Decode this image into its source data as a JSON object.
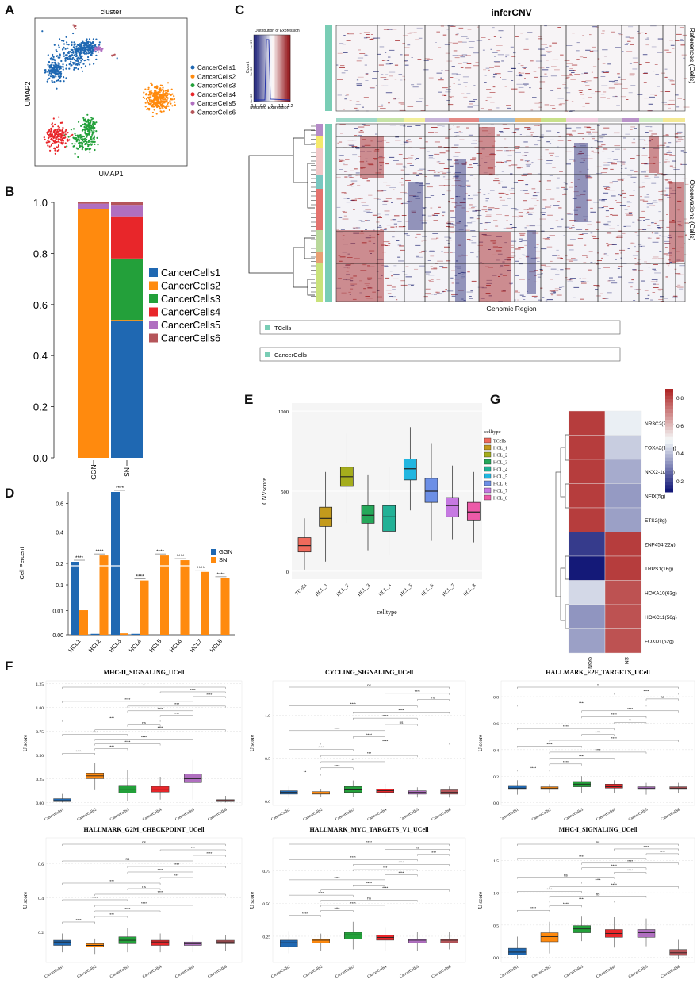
{
  "panel_labels": {
    "A": "A",
    "B": "B",
    "C": "C",
    "D": "D",
    "E": "E",
    "F": "F",
    "G": "G"
  },
  "colors": {
    "c1": "#1f68b2",
    "c2": "#ff8a0e",
    "c3": "#23a03a",
    "c4": "#e8262a",
    "c5": "#b06fc0",
    "c6": "#b5555a",
    "teal": "#79cdb5",
    "dark_red": "#9b0f12",
    "navy": "#1a1f6e"
  },
  "chart_data": [
    {
      "id": "A",
      "type": "scatter",
      "title": "cluster",
      "xlabel": "UMAP1",
      "ylabel": "UMAP2",
      "legend": [
        "CancerCells1",
        "CancerCells2",
        "CancerCells3",
        "CancerCells4",
        "CancerCells5",
        "CancerCells6"
      ]
    },
    {
      "id": "B",
      "type": "bar",
      "stacked": true,
      "categories": [
        "GGN",
        "SN"
      ],
      "yticks": [
        "0.0",
        "0.2",
        "0.4",
        "0.6",
        "0.8",
        "1.0"
      ],
      "ylim": [
        0,
        1
      ],
      "series": [
        {
          "name": "CancerCells1",
          "values": [
            0.0,
            0.535
          ]
        },
        {
          "name": "CancerCells2",
          "values": [
            0.975,
            0.005
          ]
        },
        {
          "name": "CancerCells3",
          "values": [
            0.0,
            0.24
          ]
        },
        {
          "name": "CancerCells4",
          "values": [
            0.0,
            0.165
          ]
        },
        {
          "name": "CancerCells5",
          "values": [
            0.02,
            0.045
          ]
        },
        {
          "name": "CancerCells6",
          "values": [
            0.005,
            0.01
          ]
        }
      ]
    },
    {
      "id": "C",
      "type": "heatmap",
      "title": "inferCNV",
      "key_title": "Distribution of Expression",
      "key_xlabel": "Modified Expression",
      "key_ylabel": "Count",
      "key_xticks": [
        "0.8",
        "0.9",
        "1",
        "1.1",
        "1.2"
      ],
      "key_yticks": [
        "0e+00",
        "5e+06",
        "1e+07"
      ],
      "ref_label": "References (Cells)",
      "obs_label": "Observations (Cells)",
      "xlabel": "Genomic Region",
      "legend": [
        "TCells",
        "CancerCells"
      ]
    },
    {
      "id": "D",
      "type": "bar",
      "ylabel": "Cell Percent",
      "categories": [
        "HCL1",
        "HCL2",
        "HCL3",
        "HCL4",
        "HCL5",
        "HCL6",
        "HCL7",
        "HCL8"
      ],
      "yticks": [
        "0.00",
        "0.01",
        "0.1",
        "0.2",
        "0.4",
        "0.6"
      ],
      "series": [
        {
          "name": "GGN",
          "values": [
            0.21,
            0.0004,
            0.7,
            0.0004,
            0,
            0,
            0,
            0
          ]
        },
        {
          "name": "SN",
          "values": [
            0.011,
            0.25,
            0.0006,
            0.12,
            0.25,
            0.22,
            0.16,
            0.13
          ]
        }
      ],
      "sig": [
        "****",
        "****",
        "****",
        "****",
        "****",
        "****",
        "****",
        "****"
      ]
    },
    {
      "id": "E",
      "type": "box",
      "xlabel": "celltype",
      "ylabel": "CNVscore",
      "ylim": [
        -50,
        1050
      ],
      "yticks": [
        0,
        500,
        1000
      ],
      "legend_title": "celltype",
      "categories": [
        "TCells",
        "HCL_1",
        "HCL_2",
        "HCL_3",
        "HCL_4",
        "HCL_5",
        "HCL_6",
        "HCL_7",
        "HCL_8"
      ],
      "series": [
        {
          "name": "TCells",
          "stats": [
            10,
            120,
            160,
            210,
            330
          ],
          "color": "#f06a5c"
        },
        {
          "name": "HCL_1",
          "stats": [
            60,
            280,
            330,
            400,
            620
          ],
          "color": "#c39a1c"
        },
        {
          "name": "HCL_2",
          "stats": [
            300,
            530,
            590,
            650,
            860
          ],
          "color": "#a5ad1c"
        },
        {
          "name": "HCL_3",
          "stats": [
            130,
            300,
            350,
            410,
            600
          ],
          "color": "#25a85a"
        },
        {
          "name": "HCL_4",
          "stats": [
            100,
            250,
            340,
            410,
            650
          ],
          "color": "#22b196"
        },
        {
          "name": "HCL_5",
          "stats": [
            380,
            570,
            640,
            700,
            900
          ],
          "color": "#22b6e0"
        },
        {
          "name": "HCL_6",
          "stats": [
            190,
            430,
            500,
            580,
            800
          ],
          "color": "#6c8fe6"
        },
        {
          "name": "HCL_7",
          "stats": [
            200,
            340,
            410,
            460,
            660
          ],
          "color": "#c679e2"
        },
        {
          "name": "HCL_8",
          "stats": [
            180,
            320,
            370,
            430,
            620
          ],
          "color": "#ec5aa8"
        }
      ]
    },
    {
      "id": "G",
      "type": "heatmap",
      "columns": [
        "GGN",
        "SN"
      ],
      "rows": [
        "NR3C2(29g)",
        "FOXA2(110g)",
        "NKX2-1(32g)",
        "NFIX(5g)",
        "ETS2(8g)",
        "ZNF454(22g)",
        "TRPS1(16g)",
        "HOXA10(63g)",
        "HOXC11(56g)",
        "FOXD1(52g)"
      ],
      "values": [
        [
          0.86,
          0.48
        ],
        [
          0.86,
          0.42
        ],
        [
          0.86,
          0.36
        ],
        [
          0.86,
          0.33
        ],
        [
          0.86,
          0.34
        ],
        [
          0.16,
          0.86
        ],
        [
          0.1,
          0.86
        ],
        [
          0.44,
          0.82
        ],
        [
          0.32,
          0.82
        ],
        [
          0.34,
          0.82
        ]
      ],
      "scale_ticks": [
        "0.8",
        "0.6",
        "0.4",
        "0.2"
      ]
    },
    {
      "id": "F",
      "type": "box",
      "ylabel": "U score",
      "categories": [
        "CancerCells1",
        "CancerCells2",
        "CancerCells3",
        "CancerCells4",
        "CancerCells5",
        "CancerCells6"
      ],
      "plots": [
        {
          "title": "MHC-II_SIGNALING_UCell",
          "yticks": [
            "0.00",
            "0.25",
            "0.50",
            "0.75",
            "1.00",
            "1.25"
          ],
          "ylim": [
            -0.03,
            1.28
          ],
          "boxes": [
            [
              0,
              0.01,
              0.02,
              0.04,
              0.09
            ],
            [
              0.13,
              0.25,
              0.28,
              0.31,
              0.42
            ],
            [
              0.02,
              0.1,
              0.14,
              0.18,
              0.34
            ],
            [
              0.03,
              0.11,
              0.14,
              0.17,
              0.27
            ],
            [
              0.03,
              0.21,
              0.25,
              0.3,
              0.45
            ],
            [
              0,
              0.01,
              0.02,
              0.03,
              0.07
            ]
          ],
          "sig": [
            "****",
            "****",
            "****",
            "****",
            "****",
            "****",
            "ns",
            "****",
            "****",
            "****",
            "****",
            "****",
            "****",
            "****",
            "*"
          ]
        },
        {
          "title": "CYCLING_SIGNALING_UCell",
          "yticks": [
            "0.0",
            "0.5",
            "1.0"
          ],
          "ylim": [
            -0.05,
            1.4
          ],
          "boxes": [
            [
              0.04,
              0.08,
              0.1,
              0.12,
              0.17
            ],
            [
              0.05,
              0.08,
              0.09,
              0.11,
              0.14
            ],
            [
              0.05,
              0.1,
              0.13,
              0.17,
              0.24
            ],
            [
              0.05,
              0.1,
              0.12,
              0.14,
              0.2
            ],
            [
              0.04,
              0.08,
              0.1,
              0.12,
              0.16
            ],
            [
              0.04,
              0.08,
              0.1,
              0.13,
              0.17
            ]
          ],
          "sig": [
            "**",
            "****",
            "**",
            "***",
            "****",
            "****",
            "****",
            "****",
            "ns",
            "****",
            "****",
            "****",
            "ns",
            "****",
            "ns"
          ]
        },
        {
          "title": "HALLMARK_E2F_TARGETS_UCell",
          "yticks": [
            "0.0",
            "0.2",
            "0.4",
            "0.6",
            "0.8"
          ],
          "ylim": [
            -0.02,
            0.92
          ],
          "boxes": [
            [
              0.06,
              0.1,
              0.11,
              0.13,
              0.17
            ],
            [
              0.07,
              0.1,
              0.11,
              0.12,
              0.14
            ],
            [
              0.07,
              0.12,
              0.14,
              0.16,
              0.2
            ],
            [
              0.07,
              0.11,
              0.12,
              0.14,
              0.17
            ],
            [
              0.06,
              0.1,
              0.11,
              0.12,
              0.15
            ],
            [
              0.07,
              0.1,
              0.11,
              0.12,
              0.15
            ]
          ],
          "sig": [
            "****",
            "****",
            "****",
            "****",
            "****",
            "****",
            "****",
            "****",
            "**",
            "****",
            "****",
            "****",
            "ns",
            "****",
            "*"
          ]
        },
        {
          "title": "HALLMARK_G2M_CHECKPOINT_UCell",
          "yticks": [
            "0.2",
            "0.4",
            "0.6"
          ],
          "ylim": [
            0.02,
            0.75
          ],
          "boxes": [
            [
              0.08,
              0.12,
              0.14,
              0.15,
              0.19
            ],
            [
              0.07,
              0.11,
              0.12,
              0.13,
              0.16
            ],
            [
              0.08,
              0.13,
              0.15,
              0.17,
              0.22
            ],
            [
              0.08,
              0.12,
              0.14,
              0.15,
              0.19
            ],
            [
              0.08,
              0.12,
              0.13,
              0.14,
              0.18
            ],
            [
              0.09,
              0.13,
              0.14,
              0.15,
              0.18
            ]
          ],
          "sig": [
            "****",
            "****",
            "****",
            "****",
            "****",
            "****",
            "ns",
            "****",
            "***",
            "****",
            "****",
            "ns",
            "****",
            "***",
            "ns"
          ]
        },
        {
          "title": "HALLMARK_MYC_TARGETS_V1_UCell",
          "yticks": [
            "0.25",
            "0.50",
            "0.75"
          ],
          "ylim": [
            0.05,
            1.0
          ],
          "boxes": [
            [
              0.12,
              0.17,
              0.2,
              0.22,
              0.29
            ],
            [
              0.14,
              0.2,
              0.22,
              0.23,
              0.27
            ],
            [
              0.15,
              0.23,
              0.26,
              0.28,
              0.36
            ],
            [
              0.14,
              0.22,
              0.24,
              0.26,
              0.32
            ],
            [
              0.14,
              0.2,
              0.22,
              0.23,
              0.28
            ],
            [
              0.15,
              0.2,
              0.22,
              0.23,
              0.28
            ]
          ],
          "sig": [
            "****",
            "****",
            "****",
            "ns",
            "****",
            "****",
            "****",
            "****",
            "****",
            "***",
            "****",
            "****",
            "****",
            "ns",
            "****"
          ]
        },
        {
          "title": "MHC-I_SIGNALING_UCell",
          "yticks": [
            "0.0",
            "0.5",
            "1.0",
            "1.5"
          ],
          "ylim": [
            -0.08,
            1.85
          ],
          "boxes": [
            [
              -0.02,
              0.04,
              0.08,
              0.14,
              0.32
            ],
            [
              0.06,
              0.24,
              0.32,
              0.38,
              0.55
            ],
            [
              0.25,
              0.38,
              0.44,
              0.49,
              0.63
            ],
            [
              0.15,
              0.31,
              0.37,
              0.43,
              0.62
            ],
            [
              0.17,
              0.31,
              0.38,
              0.43,
              0.6
            ],
            [
              -0.02,
              0.03,
              0.07,
              0.12,
              0.27
            ]
          ],
          "sig": [
            "****",
            "****",
            "****",
            "ns",
            "****",
            "****",
            "****",
            "ns",
            "****",
            "****",
            "****",
            "****",
            "****",
            "****",
            "ns"
          ]
        }
      ]
    }
  ]
}
